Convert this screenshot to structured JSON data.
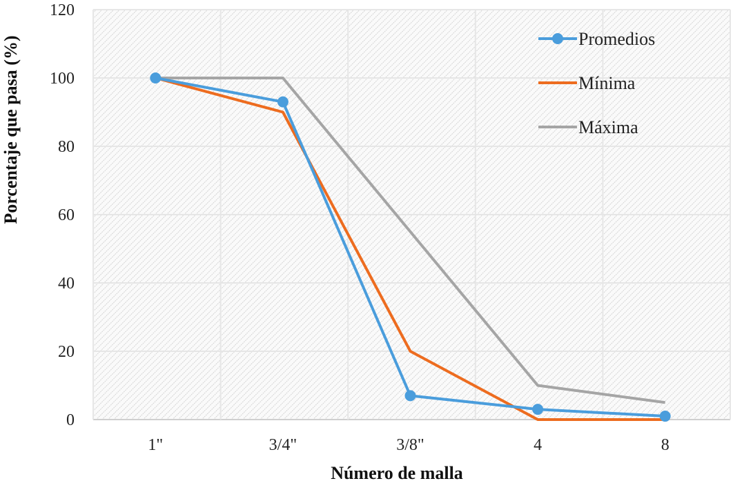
{
  "chart_data": {
    "type": "line",
    "title": "",
    "xlabel": "Número de malla",
    "ylabel": "Porcentaje que pasa (%)",
    "categories": [
      "1\"",
      "3/4\"",
      "3/8\"",
      "4",
      "8"
    ],
    "ylim": [
      0,
      120
    ],
    "yticks": [
      0,
      20,
      40,
      60,
      80,
      100,
      120
    ],
    "grid": true,
    "legend_position": "top-right",
    "series": [
      {
        "name": "Promedios",
        "color": "#4a9ddc",
        "markers": true,
        "values": [
          100,
          93,
          7,
          3,
          1
        ]
      },
      {
        "name": "Mínima",
        "color": "#ed6c1f",
        "markers": false,
        "values": [
          100,
          90,
          20,
          0,
          0
        ]
      },
      {
        "name": "Máxima",
        "color": "#a5a5a5",
        "markers": false,
        "values": [
          100,
          100,
          55,
          10,
          5
        ]
      }
    ]
  }
}
